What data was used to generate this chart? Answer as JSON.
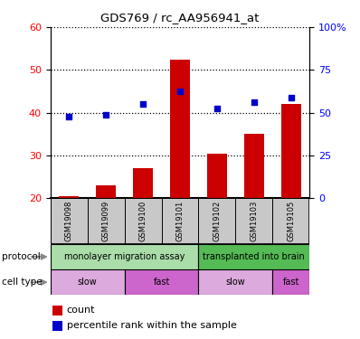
{
  "title": "GDS769 / rc_AA956941_at",
  "samples": [
    "GSM19098",
    "GSM19099",
    "GSM19100",
    "GSM19101",
    "GSM19102",
    "GSM19103",
    "GSM19105"
  ],
  "count_values": [
    20.5,
    23.0,
    27.0,
    52.5,
    30.5,
    35.0,
    42.0
  ],
  "percentile_values": [
    39.0,
    39.5,
    42.0,
    45.0,
    41.0,
    42.5,
    43.5
  ],
  "count_base": 20,
  "ylim_left": [
    20,
    60
  ],
  "ylim_right": [
    0,
    100
  ],
  "left_ticks": [
    20,
    30,
    40,
    50,
    60
  ],
  "right_ticks": [
    0,
    25,
    50,
    75,
    100
  ],
  "right_tick_labels": [
    "0",
    "25",
    "50",
    "75",
    "100%"
  ],
  "bar_color": "#cc0000",
  "dot_color": "#0000cc",
  "protocol_groups": [
    {
      "label": "monolayer migration assay",
      "start": 0,
      "end": 4,
      "color": "#aaddaa"
    },
    {
      "label": "transplanted into brain",
      "start": 4,
      "end": 7,
      "color": "#55bb55"
    }
  ],
  "celltype_groups": [
    {
      "label": "slow",
      "start": 0,
      "end": 2,
      "color": "#ddaadd"
    },
    {
      "label": "fast",
      "start": 2,
      "end": 4,
      "color": "#cc66cc"
    },
    {
      "label": "slow",
      "start": 4,
      "end": 6,
      "color": "#ddaadd"
    },
    {
      "label": "fast",
      "start": 6,
      "end": 7,
      "color": "#cc66cc"
    }
  ],
  "legend_count_color": "#cc0000",
  "legend_pct_color": "#0000cc",
  "xlabel_protocol": "protocol",
  "xlabel_celltype": "cell type",
  "sample_box_color": "#c8c8c8"
}
